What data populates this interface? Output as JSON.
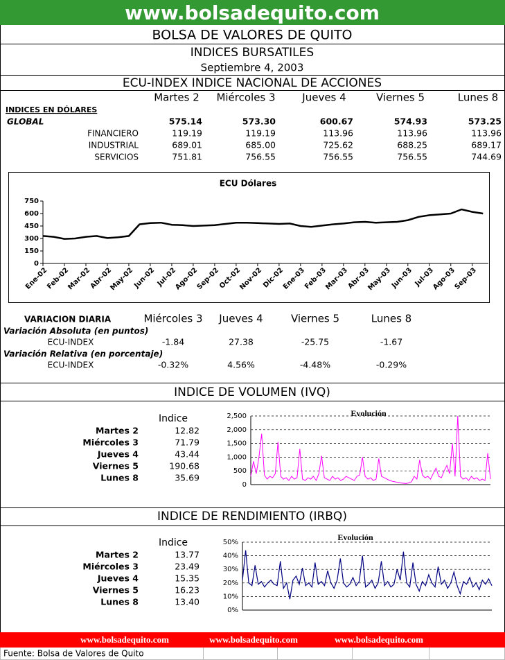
{
  "header": {
    "site": "www.bolsadequito.com",
    "title": "BOLSA DE VALORES DE QUITO",
    "subtitle": "INDICES BURSATILES",
    "date": "Septiembre 4, 2003"
  },
  "ecu": {
    "title": "ECU-INDEX  INDICE NACIONAL DE ACCIONES",
    "columns": [
      "Martes 2",
      "Miércoles 3",
      "Jueves 4",
      "Viernes 5",
      "Lunes 8"
    ],
    "section": "INDICES EN DÓLARES",
    "rows": [
      {
        "label": "GLOBAL",
        "values": [
          "575.14",
          "573.30",
          "600.67",
          "574.93",
          "573.25"
        ]
      },
      {
        "label": "FINANCIERO",
        "values": [
          "119.19",
          "119.19",
          "113.96",
          "113.96",
          "113.96"
        ]
      },
      {
        "label": "INDUSTRIAL",
        "values": [
          "689.01",
          "685.00",
          "725.62",
          "688.25",
          "689.17"
        ]
      },
      {
        "label": "SERVICIOS",
        "values": [
          "751.81",
          "756.55",
          "756.55",
          "756.55",
          "744.69"
        ]
      }
    ]
  },
  "ecu_chart": {
    "type": "line",
    "title": "ECU Dólares",
    "color": "#000000",
    "x": [
      0,
      0.5,
      1,
      1.5,
      2,
      2.5,
      3,
      3.5,
      4,
      4.5,
      5,
      5.5,
      6,
      6.5,
      7,
      7.5,
      8,
      8.5,
      9,
      9.5,
      10,
      10.5,
      11,
      11.5,
      12,
      12.5,
      13,
      13.5,
      14,
      14.5,
      15,
      15.5,
      16,
      16.5,
      17,
      17.5,
      18,
      18.5,
      19,
      19.5,
      20,
      20.5
    ],
    "values": [
      330,
      320,
      295,
      300,
      320,
      330,
      305,
      315,
      330,
      470,
      485,
      490,
      465,
      460,
      450,
      455,
      460,
      475,
      490,
      490,
      485,
      480,
      475,
      480,
      450,
      440,
      455,
      470,
      480,
      495,
      500,
      490,
      495,
      500,
      520,
      560,
      580,
      590,
      600,
      650,
      620,
      600
    ],
    "xlim": [
      0,
      20.75
    ],
    "xticks": [
      {
        "value": 0,
        "label": "Ene-02"
      },
      {
        "value": 1,
        "label": "Feb-02"
      },
      {
        "value": 2,
        "label": "Mar-02"
      },
      {
        "value": 3,
        "label": "Abr-02"
      },
      {
        "value": 4,
        "label": "May-02"
      },
      {
        "value": 5,
        "label": "Jun-02"
      },
      {
        "value": 6,
        "label": "Jul-02"
      },
      {
        "value": 7,
        "label": "Ago-02"
      },
      {
        "value": 8,
        "label": "Sep-02"
      },
      {
        "value": 9,
        "label": "Oct-02"
      },
      {
        "value": 10,
        "label": "Nov-02"
      },
      {
        "value": 11,
        "label": "Dic-02"
      },
      {
        "value": 12,
        "label": "Ene-03"
      },
      {
        "value": 13,
        "label": "Feb-03"
      },
      {
        "value": 14,
        "label": "Mar-03"
      },
      {
        "value": 15,
        "label": "Abr-03"
      },
      {
        "value": 16,
        "label": "May-03"
      },
      {
        "value": 17,
        "label": "Jun-03"
      },
      {
        "value": 18,
        "label": "Jul-03"
      },
      {
        "value": 19,
        "label": "Ago-03"
      },
      {
        "value": 20,
        "label": "Sep-03"
      }
    ],
    "ylim": [
      0,
      750
    ],
    "yticks": [
      0,
      150,
      300,
      450,
      600,
      750
    ],
    "grid": false
  },
  "variacion": {
    "title": "VARIACION DIARIA",
    "columns": [
      "Miércoles 3",
      "Jueves 4",
      "Viernes 5",
      "Lunes 8"
    ],
    "absolute": {
      "label": "Variación Absoluta (en puntos)",
      "row": "ECU-INDEX",
      "values": [
        "-1.84",
        "27.38",
        "-25.75",
        "-1.67"
      ]
    },
    "relative": {
      "label": "Variación Relativa (en porcentaje)",
      "row": "ECU-INDEX",
      "values": [
        "-0.32%",
        "4.56%",
        "-4.48%",
        "-0.29%"
      ]
    }
  },
  "ivq": {
    "title": "INDICE DE VOLUMEN (IVQ)",
    "column": "Indice",
    "rows": [
      {
        "label": "Martes 2",
        "value": "12.82"
      },
      {
        "label": "Miércoles 3",
        "value": "71.79"
      },
      {
        "label": "Jueves 4",
        "value": "43.44"
      },
      {
        "label": "Viernes 5",
        "value": "190.68"
      },
      {
        "label": "Lunes 8",
        "value": "35.69"
      }
    ],
    "chart": {
      "type": "line",
      "title": "Evolución",
      "color": "#ff00ff",
      "values": [
        300,
        850,
        400,
        1000,
        1850,
        350,
        200,
        300,
        250,
        400,
        1550,
        300,
        200,
        250,
        150,
        300,
        200,
        250,
        1300,
        200,
        150,
        250,
        200,
        300,
        150,
        400,
        1050,
        250,
        200,
        150,
        300,
        200,
        250,
        150,
        200,
        300,
        250,
        200,
        150,
        300,
        350,
        1000,
        300,
        200,
        250,
        150,
        200,
        950,
        300,
        250,
        200,
        150,
        120,
        100,
        80,
        60,
        50,
        40,
        60,
        100,
        300,
        200,
        900,
        350,
        250,
        300,
        200,
        400,
        600,
        300,
        250,
        500,
        700,
        400,
        1500,
        300,
        2500,
        300,
        200,
        250,
        150,
        300,
        200,
        250,
        150,
        200,
        150,
        1150,
        200
      ],
      "ylim": [
        0,
        2500
      ],
      "yticks": [
        0,
        500,
        {
          "value": 1000,
          "label": "1,000"
        },
        {
          "value": 1500,
          "label": "1,500"
        },
        {
          "value": 2000,
          "label": "2,000"
        },
        {
          "value": 2500,
          "label": "2,500"
        }
      ],
      "grid": true
    }
  },
  "irbq": {
    "title": "INDICE DE RENDIMIENTO (IRBQ)",
    "column": "Indice",
    "rows": [
      {
        "label": "Martes 2",
        "value": "13.77"
      },
      {
        "label": "Miércoles 3",
        "value": "23.49"
      },
      {
        "label": "Jueves 4",
        "value": "15.35"
      },
      {
        "label": "Viernes 5",
        "value": "16.23"
      },
      {
        "label": "Lunes 8",
        "value": "13.40"
      }
    ],
    "chart": {
      "type": "line",
      "title": "Evolución",
      "color": "#000080",
      "values": [
        22,
        44,
        20,
        18,
        33,
        19,
        21,
        17,
        20,
        22,
        19,
        18,
        36,
        16,
        20,
        8,
        22,
        25,
        19,
        31,
        18,
        20,
        17,
        35,
        19,
        21,
        18,
        29,
        20,
        16,
        22,
        38,
        20,
        17,
        19,
        24,
        18,
        21,
        40,
        17,
        19,
        22,
        16,
        20,
        36,
        18,
        21,
        17,
        19,
        30,
        22,
        43,
        20,
        17,
        35,
        19,
        14,
        21,
        18,
        26,
        20,
        17,
        32,
        19,
        22,
        16,
        20,
        28,
        18,
        12,
        21,
        19,
        24,
        17,
        20,
        15,
        22,
        19,
        23,
        18
      ],
      "ylim": [
        0,
        50
      ],
      "yticks": [
        {
          "value": 0,
          "label": "0%"
        },
        {
          "value": 10,
          "label": "10%"
        },
        {
          "value": 20,
          "label": "20%"
        },
        {
          "value": 30,
          "label": "30%"
        },
        {
          "value": 40,
          "label": "40%"
        },
        {
          "value": 50,
          "label": "50%"
        }
      ],
      "grid": true
    }
  },
  "footer": {
    "links": [
      "www.bolsadequito.com",
      "www.bolsadequito.com",
      "www.bolsadequito.com"
    ],
    "source": "Fuente: Bolsa de Valores de Quito"
  }
}
